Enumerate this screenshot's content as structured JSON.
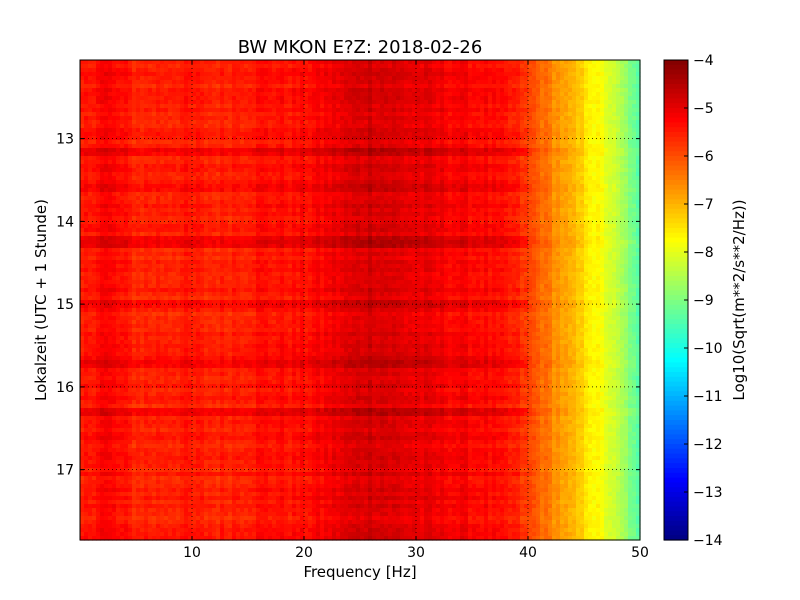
{
  "chart_data": {
    "type": "heatmap",
    "title": "BW MKON E?Z: 2018-02-26",
    "xlabel": "Frequency [Hz]",
    "ylabel": "Lokalzeit (UTC + 1 Stunde)",
    "xlim": [
      0,
      50
    ],
    "ylim": [
      12.05,
      17.85
    ],
    "y_inverted": true,
    "x_ticks": [
      10,
      20,
      30,
      40,
      50
    ],
    "y_ticks": [
      13,
      14,
      15,
      16,
      17
    ],
    "grid": true,
    "colormap": "jet",
    "colorbar": {
      "label": "Log10(Sqrt(m**2/s**2/Hz))",
      "range": [
        -14,
        -4
      ],
      "ticks": [
        -4,
        -5,
        -6,
        -7,
        -8,
        -9,
        -10,
        -11,
        -12,
        -13,
        -14
      ]
    },
    "frequency_profile": {
      "frequency": [
        0,
        2,
        5,
        9,
        12,
        16,
        20,
        23,
        26,
        29,
        33,
        36,
        39,
        41,
        43,
        45,
        47,
        49,
        50
      ],
      "log10_amplitude": [
        -5.6,
        -5.2,
        -5.6,
        -5.5,
        -5.6,
        -5.4,
        -5.4,
        -5.1,
        -4.8,
        -5.0,
        -5.2,
        -5.3,
        -5.6,
        -6.2,
        -6.8,
        -7.4,
        -8.0,
        -8.9,
        -9.6
      ]
    },
    "strong_time_bands": [
      13.15,
      13.6,
      14.25,
      15.0,
      15.7,
      16.3
    ]
  }
}
